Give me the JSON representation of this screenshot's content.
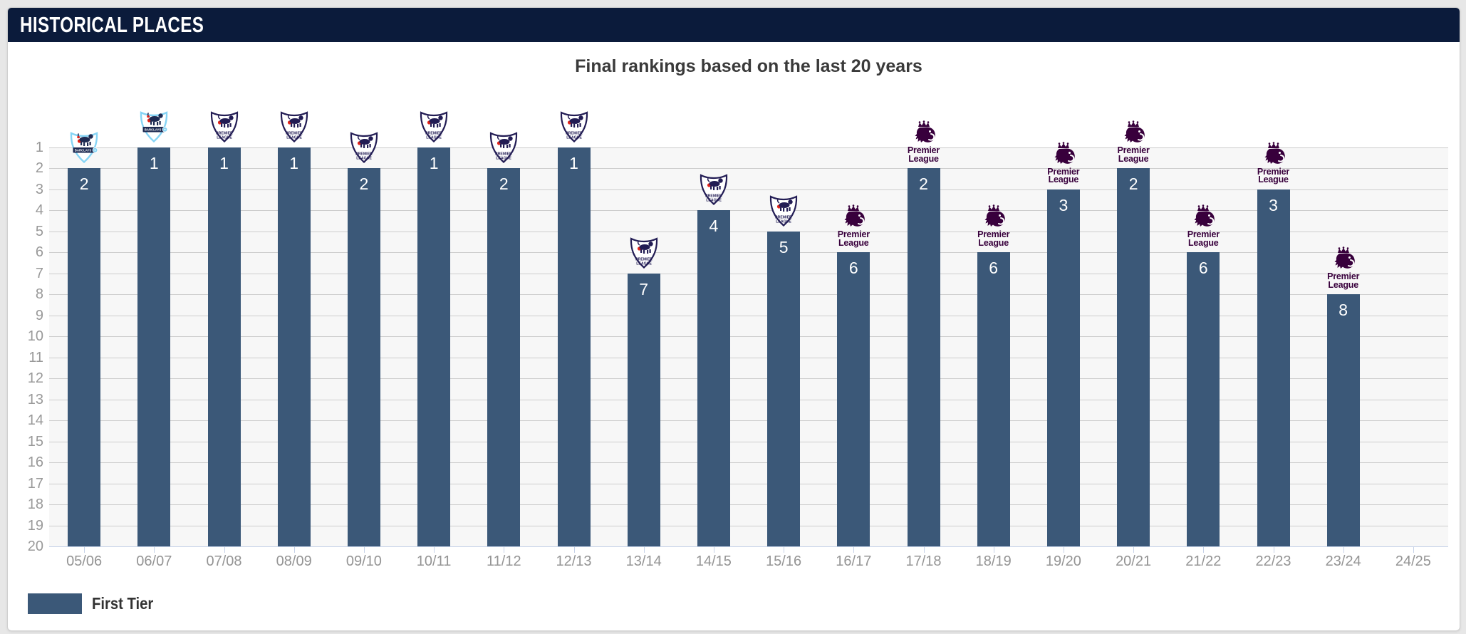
{
  "header": {
    "title": "HISTORICAL PLACES"
  },
  "chart_data": {
    "type": "bar",
    "title": "Final rankings based on the last 20 years",
    "categories": [
      "05/06",
      "06/07",
      "07/08",
      "08/09",
      "09/10",
      "10/11",
      "11/12",
      "12/13",
      "13/14",
      "14/15",
      "15/16",
      "16/17",
      "17/18",
      "18/19",
      "19/20",
      "20/21",
      "21/22",
      "22/23",
      "23/24",
      "24/25"
    ],
    "series": [
      {
        "name": "First Tier",
        "values": [
          2,
          1,
          1,
          1,
          2,
          1,
          2,
          1,
          7,
          4,
          5,
          6,
          2,
          6,
          3,
          2,
          6,
          3,
          8,
          null
        ]
      }
    ],
    "season_logos": [
      "barclays",
      "barclays",
      "shield",
      "shield",
      "shield",
      "shield",
      "shield",
      "shield",
      "shield",
      "shield",
      "shield",
      "lion",
      "lion",
      "lion",
      "lion",
      "lion",
      "lion",
      "lion",
      "lion",
      null
    ],
    "y_axis": {
      "min": 1,
      "max": 20,
      "reversed": true,
      "ticks_every": 1
    },
    "x_axis": {
      "label_all": true
    },
    "grid": true,
    "legend": {
      "position": "bottom-left",
      "items": [
        {
          "label": "First Tier",
          "color": "#3b5878"
        }
      ]
    },
    "value_labels": "inside-top-white"
  },
  "logos": {
    "lion": {
      "name": "premier-league-lion-logo",
      "lines": [
        "Premier",
        "League"
      ]
    },
    "shield": {
      "name": "premier-league-badge",
      "lines": [
        "PREMIER",
        "LEAGUE"
      ]
    },
    "barclays": {
      "name": "barclays-premier-league-badge",
      "banner_text": "BARCLAYS"
    }
  },
  "colors": {
    "header_bg": "#0b1b3b",
    "bar": "#3b5878",
    "pl_purple": "#38003c",
    "old_badge_navy": "#221c54",
    "barclays_cyan": "#86d4f5",
    "ball_red": "#e2231a",
    "plot_bg": "#f7f7f7",
    "gridline": "#cdcdcd",
    "axis_line": "#c6d2e8",
    "axis_label": "#999999",
    "chart_title": "#3a3a3a"
  }
}
